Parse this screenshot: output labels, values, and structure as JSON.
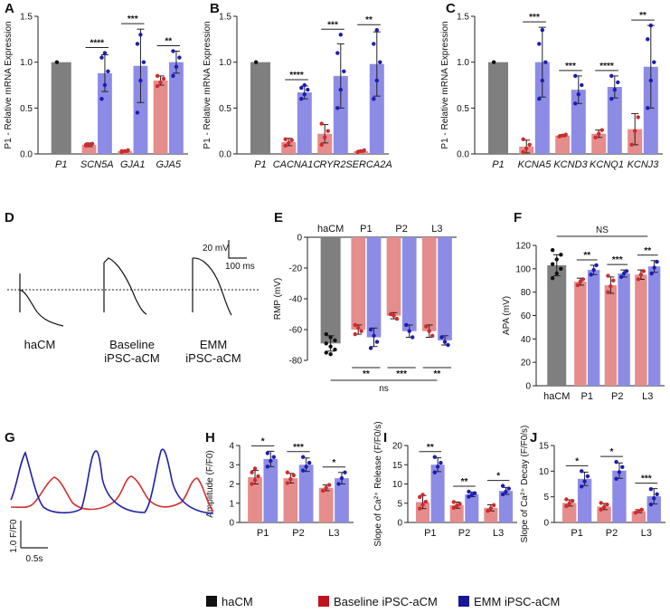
{
  "colors": {
    "gray": "#7f7f7f",
    "red": "#e58c8c",
    "blue": "#8c8ce6",
    "redDot": "#d12a2a",
    "blueDot": "#1c1cb4",
    "black": "#111111"
  },
  "legend": [
    {
      "label": "haCM",
      "color": "#111111"
    },
    {
      "label": "Baseline iPSC-aCM",
      "color": "#c0141c"
    },
    {
      "label": "EMM iPSC-aCM",
      "color": "#161696"
    }
  ],
  "panels": {
    "D": {
      "scale_v": "20 mV",
      "scale_t": "100 ms",
      "labels": [
        {
          "lines": [
            "haCM"
          ],
          "color": "#111111"
        },
        {
          "lines": [
            "Baseline",
            "iPSC-aCM"
          ],
          "color": "#c0141c"
        },
        {
          "lines": [
            "EMM",
            "iPSC-aCM"
          ],
          "color": "#161696"
        }
      ]
    },
    "G": {
      "scale_y": "1.0 F/F0",
      "scale_x": "0.5s"
    }
  },
  "chart_data": [
    {
      "id": "A",
      "type": "bar",
      "ylabel": "P1 - Relative mRNA Expression",
      "ylim": [
        0,
        1.5
      ],
      "yticks": [
        "0.0",
        "0.5",
        "1.0",
        "1.5"
      ],
      "categories": [
        "P1",
        "SCN5A",
        "GJA1",
        "GJA5"
      ],
      "groups": [
        {
          "bars": [
            {
              "c": "gray",
              "v": 1.0,
              "e": 0,
              "pts": [
                1.0
              ]
            }
          ]
        },
        {
          "bars": [
            {
              "c": "red",
              "v": 0.1,
              "e": 0.02,
              "pts": [
                0.09,
                0.1,
                0.11,
                0.1,
                0.1
              ]
            },
            {
              "c": "blue",
              "v": 0.88,
              "e": 0.2,
              "pts": [
                0.6,
                0.75,
                0.9,
                1.05,
                1.1
              ]
            }
          ],
          "sig": "****"
        },
        {
          "bars": [
            {
              "c": "red",
              "v": 0.03,
              "e": 0.01,
              "pts": [
                0.02,
                0.03,
                0.04,
                0.03
              ]
            },
            {
              "c": "blue",
              "v": 0.96,
              "e": 0.4,
              "pts": [
                0.45,
                0.8,
                1.0,
                1.2,
                1.3
              ]
            }
          ],
          "sig": "***"
        },
        {
          "bars": [
            {
              "c": "red",
              "v": 0.8,
              "e": 0.05,
              "pts": [
                0.74,
                0.78,
                0.82,
                0.85
              ]
            },
            {
              "c": "blue",
              "v": 1.0,
              "e": 0.12,
              "pts": [
                0.85,
                0.95,
                1.05,
                1.12
              ]
            }
          ],
          "sig": "**"
        }
      ]
    },
    {
      "id": "B",
      "type": "bar",
      "ylabel": "P1 - Relative mRNA Expression",
      "ylim": [
        0,
        1.5
      ],
      "yticks": [
        "0.0",
        "0.5",
        "1.0",
        "1.5"
      ],
      "categories": [
        "P1",
        "CACNA1C",
        "RYR2",
        "SERCA2A"
      ],
      "groups": [
        {
          "bars": [
            {
              "c": "gray",
              "v": 1.0,
              "e": 0,
              "pts": [
                1.0
              ]
            }
          ]
        },
        {
          "bars": [
            {
              "c": "red",
              "v": 0.13,
              "e": 0.04,
              "pts": [
                0.09,
                0.12,
                0.15,
                0.16
              ]
            },
            {
              "c": "blue",
              "v": 0.67,
              "e": 0.07,
              "pts": [
                0.6,
                0.65,
                0.7,
                0.72,
                0.75
              ]
            }
          ],
          "sig": "****"
        },
        {
          "bars": [
            {
              "c": "red",
              "v": 0.22,
              "e": 0.1,
              "pts": [
                0.1,
                0.18,
                0.25,
                0.33
              ]
            },
            {
              "c": "blue",
              "v": 0.85,
              "e": 0.35,
              "pts": [
                0.5,
                0.7,
                0.9,
                1.1,
                1.3
              ]
            }
          ],
          "sig": "***"
        },
        {
          "bars": [
            {
              "c": "red",
              "v": 0.03,
              "e": 0.01,
              "pts": [
                0.02,
                0.03,
                0.04
              ]
            },
            {
              "c": "blue",
              "v": 0.98,
              "e": 0.35,
              "pts": [
                0.6,
                0.8,
                1.0,
                1.2,
                1.35
              ]
            }
          ],
          "sig": "**"
        }
      ]
    },
    {
      "id": "C",
      "type": "bar",
      "ylabel": "P1 - Relative mRNA Expression",
      "ylim": [
        0,
        1.5
      ],
      "yticks": [
        "0.0",
        "0.5",
        "1.0",
        "1.5"
      ],
      "categories": [
        "P1",
        "KCNA5",
        "KCND3",
        "KCNQ1",
        "KCNJ3"
      ],
      "groups": [
        {
          "bars": [
            {
              "c": "gray",
              "v": 1.0,
              "e": 0,
              "pts": [
                1.0
              ]
            }
          ]
        },
        {
          "bars": [
            {
              "c": "red",
              "v": 0.08,
              "e": 0.07,
              "pts": [
                0.02,
                0.06,
                0.1,
                0.16
              ]
            },
            {
              "c": "blue",
              "v": 1.0,
              "e": 0.38,
              "pts": [
                0.6,
                0.8,
                1.0,
                1.2,
                1.35
              ]
            }
          ],
          "sig": "***"
        },
        {
          "bars": [
            {
              "c": "red",
              "v": 0.2,
              "e": 0.01,
              "pts": [
                0.19,
                0.2,
                0.21
              ]
            },
            {
              "c": "blue",
              "v": 0.7,
              "e": 0.15,
              "pts": [
                0.55,
                0.65,
                0.75,
                0.85
              ]
            }
          ],
          "sig": "***"
        },
        {
          "bars": [
            {
              "c": "red",
              "v": 0.22,
              "e": 0.04,
              "pts": [
                0.18,
                0.22,
                0.26
              ]
            },
            {
              "c": "blue",
              "v": 0.73,
              "e": 0.12,
              "pts": [
                0.6,
                0.7,
                0.78,
                0.85
              ]
            }
          ],
          "sig": "****"
        },
        {
          "bars": [
            {
              "c": "red",
              "v": 0.27,
              "e": 0.17,
              "pts": [
                0.1,
                0.25,
                0.4
              ]
            },
            {
              "c": "blue",
              "v": 0.95,
              "e": 0.45,
              "pts": [
                0.5,
                0.8,
                1.0,
                1.25,
                1.4
              ]
            }
          ],
          "sig": "**"
        }
      ]
    },
    {
      "id": "E",
      "type": "bar",
      "ylabel": "RMP (mV)",
      "ylim": [
        -80,
        0
      ],
      "inverted": true,
      "yticks": [
        "-80",
        "-60",
        "-40",
        "-20",
        "0"
      ],
      "top_labels": [
        "haCM",
        "P1",
        "P2",
        "L3"
      ],
      "bottom_sig": [
        "**",
        "***",
        "**"
      ],
      "bottom_ns": "ns",
      "groups": [
        {
          "bars": [
            {
              "c": "gray",
              "v": -69,
              "e": 5,
              "pts": [
                -63,
                -65,
                -67,
                -69,
                -71,
                -73,
                -75,
                -76
              ]
            }
          ]
        },
        {
          "bars": [
            {
              "c": "red",
              "v": -60,
              "e": 3,
              "pts": [
                -57,
                -59,
                -61,
                -63
              ]
            },
            {
              "c": "blue",
              "v": -65,
              "e": 6,
              "pts": [
                -60,
                -64,
                -68,
                -72
              ]
            }
          ]
        },
        {
          "bars": [
            {
              "c": "red",
              "v": -51,
              "e": 2,
              "pts": [
                -50,
                -51,
                -53
              ]
            },
            {
              "c": "blue",
              "v": -61,
              "e": 4,
              "pts": [
                -57,
                -61,
                -65
              ]
            }
          ]
        },
        {
          "bars": [
            {
              "c": "red",
              "v": -61,
              "e": 4,
              "pts": [
                -58,
                -61,
                -64
              ]
            },
            {
              "c": "blue",
              "v": -67,
              "e": 3,
              "pts": [
                -65,
                -68,
                -70
              ]
            }
          ]
        }
      ]
    },
    {
      "id": "F",
      "type": "bar",
      "ylabel": "APA (mV)",
      "ylim": [
        0,
        120
      ],
      "yticks": [
        "0",
        "20",
        "40",
        "60",
        "80",
        "100",
        "120"
      ],
      "categories": [
        "haCM",
        "P1",
        "P2",
        "L3"
      ],
      "top_ns": "NS",
      "groups": [
        {
          "bars": [
            {
              "c": "gray",
              "v": 103,
              "e": 9,
              "pts": [
                92,
                96,
                100,
                104,
                108,
                112,
                116
              ]
            }
          ]
        },
        {
          "bars": [
            {
              "c": "red",
              "v": 89,
              "e": 3,
              "pts": [
                86,
                89,
                91
              ]
            },
            {
              "c": "blue",
              "v": 99,
              "e": 4,
              "pts": [
                95,
                99,
                103
              ]
            }
          ],
          "sig": "**"
        },
        {
          "bars": [
            {
              "c": "red",
              "v": 86,
              "e": 7,
              "pts": [
                80,
                85,
                90,
                94
              ]
            },
            {
              "c": "blue",
              "v": 96,
              "e": 3,
              "pts": [
                93,
                96,
                98
              ]
            }
          ],
          "sig": "***"
        },
        {
          "bars": [
            {
              "c": "red",
              "v": 95,
              "e": 4,
              "pts": [
                91,
                95,
                98
              ]
            },
            {
              "c": "blue",
              "v": 102,
              "e": 5,
              "pts": [
                96,
                101,
                106
              ]
            }
          ],
          "sig": "**"
        }
      ]
    },
    {
      "id": "H",
      "type": "bar",
      "ylabel": "Amplitude (F/F0)",
      "ylim": [
        0,
        4
      ],
      "yticks": [
        "0",
        "1",
        "2",
        "3",
        "4"
      ],
      "categories": [
        "P1",
        "P2",
        "L3"
      ],
      "groups": [
        {
          "bars": [
            {
              "c": "red",
              "v": 2.35,
              "e": 0.35,
              "pts": [
                2.0,
                2.2,
                2.4,
                2.6,
                2.8
              ]
            },
            {
              "c": "blue",
              "v": 3.3,
              "e": 0.4,
              "pts": [
                2.9,
                3.2,
                3.4,
                3.6
              ]
            }
          ],
          "sig": "*"
        },
        {
          "bars": [
            {
              "c": "red",
              "v": 2.3,
              "e": 0.25,
              "pts": [
                2.05,
                2.25,
                2.45,
                2.6
              ]
            },
            {
              "c": "blue",
              "v": 3.0,
              "e": 0.35,
              "pts": [
                2.7,
                2.9,
                3.1,
                3.4
              ]
            }
          ],
          "sig": "***"
        },
        {
          "bars": [
            {
              "c": "red",
              "v": 1.8,
              "e": 0.15,
              "pts": [
                1.65,
                1.8,
                1.95
              ]
            },
            {
              "c": "blue",
              "v": 2.3,
              "e": 0.3,
              "pts": [
                2.0,
                2.3,
                2.6
              ]
            }
          ],
          "sig": "*"
        }
      ]
    },
    {
      "id": "I",
      "type": "bar",
      "ylabel": "Slope of Ca²⁺ Release (F/F0/s)",
      "ylim": [
        0,
        20
      ],
      "yticks": [
        "0",
        "5",
        "10",
        "15",
        "20"
      ],
      "categories": [
        "P1",
        "P2",
        "L3"
      ],
      "groups": [
        {
          "bars": [
            {
              "c": "red",
              "v": 5.3,
              "e": 1.7,
              "pts": [
                3.6,
                4.6,
                5.4,
                6.6,
                7.2
              ]
            },
            {
              "c": "blue",
              "v": 15.0,
              "e": 1.8,
              "pts": [
                13,
                14.5,
                15.5,
                17
              ]
            }
          ],
          "sig": "**"
        },
        {
          "bars": [
            {
              "c": "red",
              "v": 4.5,
              "e": 0.8,
              "pts": [
                3.8,
                4.3,
                4.8,
                5.3
              ]
            },
            {
              "c": "blue",
              "v": 7.3,
              "e": 0.6,
              "pts": [
                6.7,
                7.2,
                7.6,
                8.0
              ]
            }
          ],
          "sig": "**"
        },
        {
          "bars": [
            {
              "c": "red",
              "v": 3.8,
              "e": 0.8,
              "pts": [
                3.0,
                3.7,
                4.5
              ]
            },
            {
              "c": "blue",
              "v": 8.2,
              "e": 0.9,
              "pts": [
                7.3,
                8.0,
                8.8,
                9.5
              ]
            }
          ],
          "sig": "*"
        }
      ]
    },
    {
      "id": "J",
      "type": "bar",
      "ylabel": "Slope of Ca²⁺ Decay (F/F0/s)",
      "ylim": [
        0,
        15
      ],
      "yticks": [
        "0",
        "5",
        "10",
        "15"
      ],
      "categories": [
        "P1",
        "P2",
        "L3"
      ],
      "groups": [
        {
          "bars": [
            {
              "c": "red",
              "v": 3.8,
              "e": 0.6,
              "pts": [
                3.2,
                3.7,
                4.2,
                4.5
              ]
            },
            {
              "c": "blue",
              "v": 8.5,
              "e": 1.3,
              "pts": [
                7.0,
                8.0,
                9.0,
                10.0
              ]
            }
          ],
          "sig": "*"
        },
        {
          "bars": [
            {
              "c": "red",
              "v": 3.1,
              "e": 0.6,
              "pts": [
                2.5,
                3.0,
                3.5,
                3.8
              ]
            },
            {
              "c": "blue",
              "v": 10.1,
              "e": 1.5,
              "pts": [
                8.5,
                9.8,
                10.8,
                11.8
              ]
            }
          ],
          "sig": "*"
        },
        {
          "bars": [
            {
              "c": "red",
              "v": 2.2,
              "e": 0.3,
              "pts": [
                1.9,
                2.2,
                2.5
              ]
            },
            {
              "c": "blue",
              "v": 5.1,
              "e": 1.5,
              "pts": [
                3.5,
                4.7,
                5.5,
                6.5
              ]
            }
          ],
          "sig": "***"
        }
      ]
    }
  ]
}
